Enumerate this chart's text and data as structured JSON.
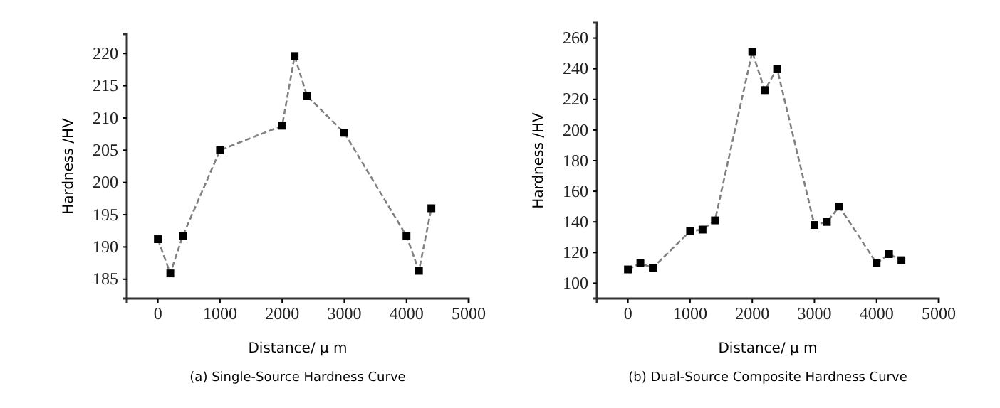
{
  "chart_data": [
    {
      "type": "line",
      "title": "(a) Single-Source Hardness Curve",
      "xlabel": "Distance/ μ m",
      "ylabel": "Hardness /HV",
      "x": [
        0,
        200,
        400,
        1000,
        2000,
        2200,
        2400,
        3000,
        4000,
        4200,
        4400
      ],
      "series": [
        {
          "color": "#808080",
          "values": [
            191.2,
            185.9,
            191.7,
            205,
            208.8,
            219.6,
            213.4,
            207.7,
            191.7,
            186.3,
            196
          ]
        }
      ],
      "xlim": [
        -500,
        5000
      ],
      "xticks": [
        0,
        1000,
        2000,
        3000,
        4000,
        5000
      ],
      "ylim": [
        182,
        223
      ],
      "yticks": [
        185,
        190,
        195,
        200,
        205,
        210,
        215,
        220
      ],
      "marker": "square",
      "line_style": "dashed",
      "grid": false
    },
    {
      "type": "line",
      "title": "(b) Dual-Source Composite Hardness Curve",
      "xlabel": "Distance/ μ m",
      "ylabel": "Hardness /HV",
      "x": [
        0,
        200,
        400,
        1000,
        1200,
        1400,
        2000,
        2200,
        2400,
        3000,
        3200,
        3400,
        4000,
        4200,
        4400
      ],
      "series": [
        {
          "color": "#808080",
          "values": [
            109,
            113,
            110,
            134,
            135,
            141,
            251,
            226,
            240,
            138,
            140,
            150,
            113,
            119,
            115
          ]
        }
      ],
      "xlim": [
        -500,
        5000
      ],
      "xticks": [
        0,
        1000,
        2000,
        3000,
        4000,
        5000
      ],
      "ylim": [
        90,
        270
      ],
      "yticks": [
        100,
        120,
        140,
        160,
        180,
        200,
        220,
        240,
        260
      ],
      "marker": "square",
      "line_style": "dashed",
      "grid": false
    }
  ]
}
